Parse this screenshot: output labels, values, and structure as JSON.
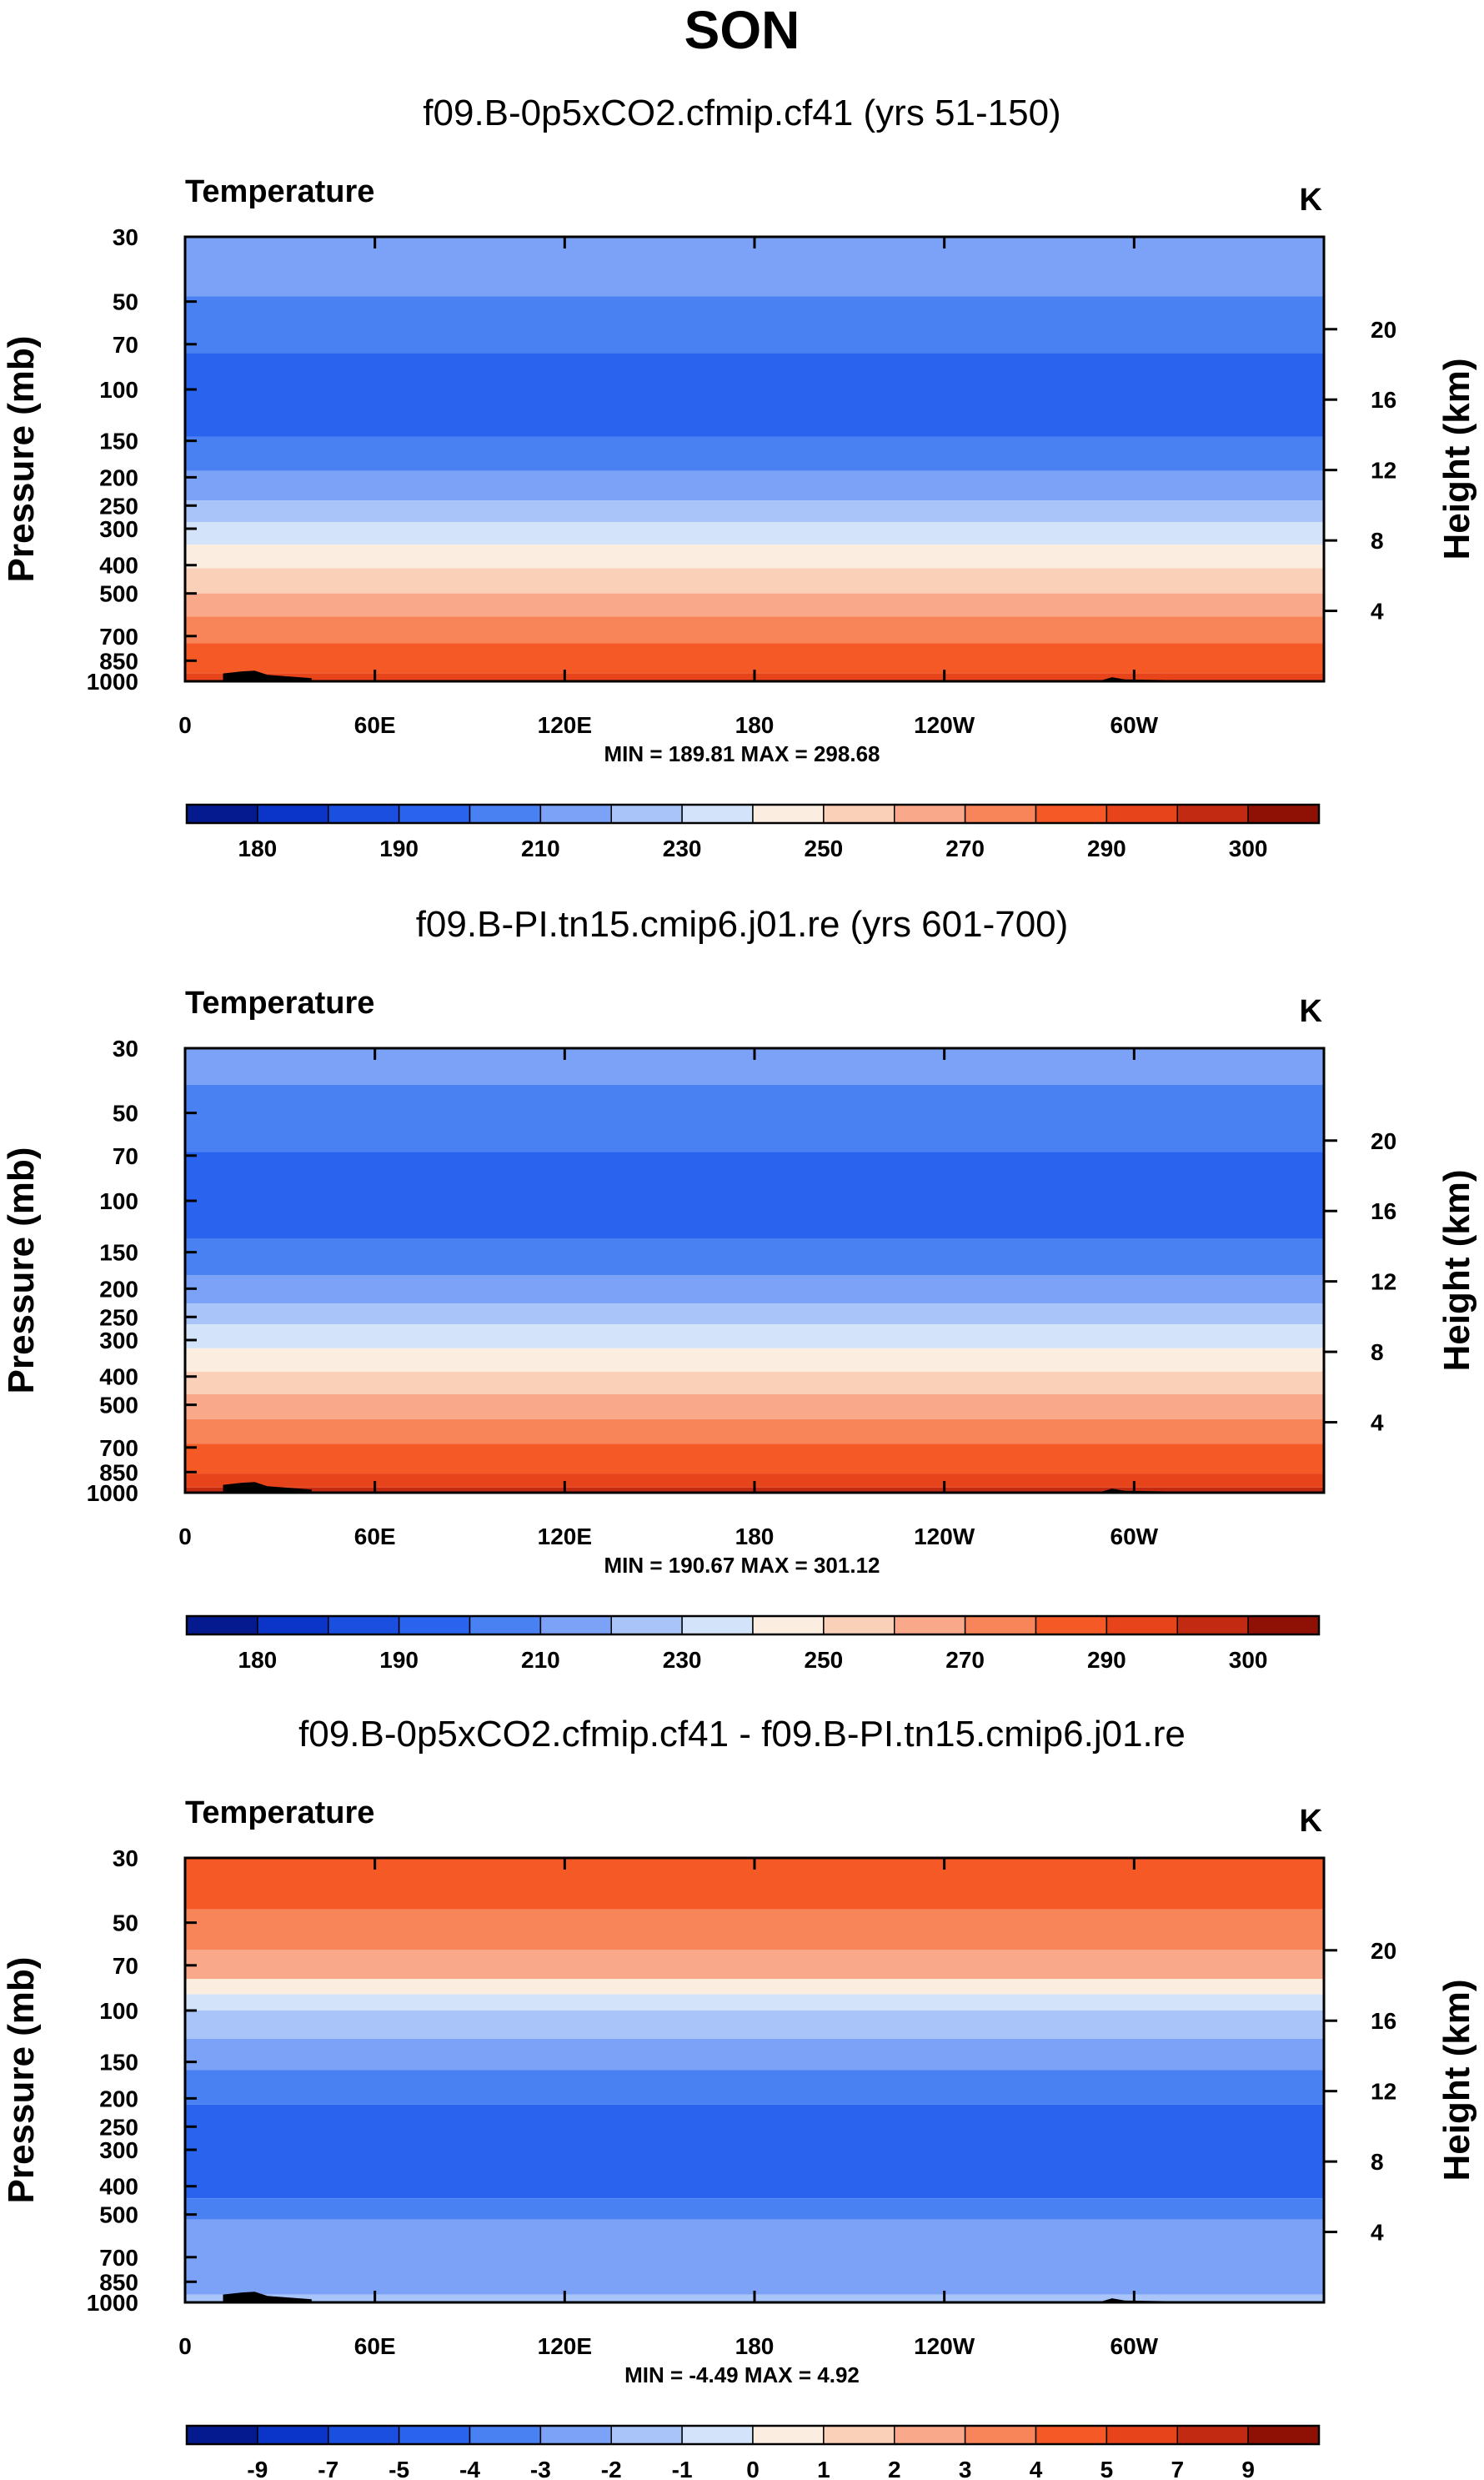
{
  "figure": {
    "title": "SON"
  },
  "chart_data": [
    {
      "type": "heatmap",
      "title": "f09.B-0p5xCO2.cfmip.cf41 (yrs 51-150)",
      "variable_label": "Temperature",
      "units_label": "K",
      "xlabel": "",
      "ylabel": "Pressure (mb)",
      "ylabel_right": "Height (km)",
      "x_ticks": [
        "0",
        "60E",
        "120E",
        "180",
        "120W",
        "60W"
      ],
      "y_ticks": [
        "30",
        "50",
        "70",
        "100",
        "150",
        "200",
        "250",
        "300",
        "400",
        "500",
        "700",
        "850",
        "1000"
      ],
      "y_ticks_right": [
        "20",
        "16",
        "12",
        "8",
        "4"
      ],
      "stats_label": "MIN = 189.81   MAX = 298.68",
      "colorbar_labels": [
        "180",
        "190",
        "210",
        "230",
        "250",
        "270",
        "290",
        "300"
      ],
      "colorbar_colors": [
        "#051a8f",
        "#0a35c8",
        "#1a4fe0",
        "#2a63ee",
        "#4a81f2",
        "#7ba2f6",
        "#a9c4f8",
        "#d3e4fa",
        "#fbeee0",
        "#fad0b8",
        "#f9a98a",
        "#f78559",
        "#f55a26",
        "#e8441b",
        "#c22b12",
        "#8f1005"
      ],
      "bands": [
        {
          "p_top": 30,
          "p_bot": 48,
          "color": "#7ba2f6"
        },
        {
          "p_top": 48,
          "p_bot": 75,
          "color": "#4a81f2"
        },
        {
          "p_top": 75,
          "p_bot": 145,
          "color": "#2a63ee"
        },
        {
          "p_top": 145,
          "p_bot": 190,
          "color": "#4a81f2"
        },
        {
          "p_top": 190,
          "p_bot": 240,
          "color": "#7ba2f6"
        },
        {
          "p_top": 240,
          "p_bot": 285,
          "color": "#a9c4f8"
        },
        {
          "p_top": 285,
          "p_bot": 340,
          "color": "#d3e4fa"
        },
        {
          "p_top": 340,
          "p_bot": 410,
          "color": "#fbeee0"
        },
        {
          "p_top": 410,
          "p_bot": 500,
          "color": "#fad0b8"
        },
        {
          "p_top": 500,
          "p_bot": 600,
          "color": "#f9a98a"
        },
        {
          "p_top": 600,
          "p_bot": 740,
          "color": "#f78559"
        },
        {
          "p_top": 740,
          "p_bot": 940,
          "color": "#f55a26"
        },
        {
          "p_top": 940,
          "p_bot": 1000,
          "color": "#e8441b"
        }
      ]
    },
    {
      "type": "heatmap",
      "title": "f09.B-PI.tn15.cmip6.j01.re (yrs 601-700)",
      "variable_label": "Temperature",
      "units_label": "K",
      "xlabel": "",
      "ylabel": "Pressure (mb)",
      "ylabel_right": "Height (km)",
      "x_ticks": [
        "0",
        "60E",
        "120E",
        "180",
        "120W",
        "60W"
      ],
      "y_ticks": [
        "30",
        "50",
        "70",
        "100",
        "150",
        "200",
        "250",
        "300",
        "400",
        "500",
        "700",
        "850",
        "1000"
      ],
      "y_ticks_right": [
        "20",
        "16",
        "12",
        "8",
        "4"
      ],
      "stats_label": "MIN = 190.67   MAX = 301.12",
      "colorbar_labels": [
        "180",
        "190",
        "210",
        "230",
        "250",
        "270",
        "290",
        "300"
      ],
      "colorbar_colors": [
        "#051a8f",
        "#0a35c8",
        "#1a4fe0",
        "#2a63ee",
        "#4a81f2",
        "#7ba2f6",
        "#a9c4f8",
        "#d3e4fa",
        "#fbeee0",
        "#fad0b8",
        "#f9a98a",
        "#f78559",
        "#f55a26",
        "#e8441b",
        "#c22b12",
        "#8f1005"
      ],
      "bands": [
        {
          "p_top": 30,
          "p_bot": 40,
          "color": "#7ba2f6"
        },
        {
          "p_top": 40,
          "p_bot": 68,
          "color": "#4a81f2"
        },
        {
          "p_top": 68,
          "p_bot": 135,
          "color": "#2a63ee"
        },
        {
          "p_top": 135,
          "p_bot": 180,
          "color": "#4a81f2"
        },
        {
          "p_top": 180,
          "p_bot": 225,
          "color": "#7ba2f6"
        },
        {
          "p_top": 225,
          "p_bot": 265,
          "color": "#a9c4f8"
        },
        {
          "p_top": 265,
          "p_bot": 320,
          "color": "#d3e4fa"
        },
        {
          "p_top": 320,
          "p_bot": 385,
          "color": "#fbeee0"
        },
        {
          "p_top": 385,
          "p_bot": 460,
          "color": "#fad0b8"
        },
        {
          "p_top": 460,
          "p_bot": 560,
          "color": "#f9a98a"
        },
        {
          "p_top": 560,
          "p_bot": 680,
          "color": "#f78559"
        },
        {
          "p_top": 680,
          "p_bot": 860,
          "color": "#f55a26"
        },
        {
          "p_top": 860,
          "p_bot": 960,
          "color": "#e8441b"
        },
        {
          "p_top": 960,
          "p_bot": 1000,
          "color": "#c22b12"
        }
      ]
    },
    {
      "type": "heatmap",
      "title": "f09.B-0p5xCO2.cfmip.cf41 - f09.B-PI.tn15.cmip6.j01.re",
      "variable_label": "Temperature",
      "units_label": "K",
      "xlabel": "",
      "ylabel": "Pressure (mb)",
      "ylabel_right": "Height (km)",
      "x_ticks": [
        "0",
        "60E",
        "120E",
        "180",
        "120W",
        "60W"
      ],
      "y_ticks": [
        "30",
        "50",
        "70",
        "100",
        "150",
        "200",
        "250",
        "300",
        "400",
        "500",
        "700",
        "850",
        "1000"
      ],
      "y_ticks_right": [
        "20",
        "16",
        "12",
        "8",
        "4"
      ],
      "stats_label": "MIN =  -4.49   MAX =   4.92",
      "colorbar_labels": [
        "-9",
        "-7",
        "-5",
        "-4",
        "-3",
        "-2",
        "-1",
        "0",
        "1",
        "2",
        "3",
        "4",
        "5",
        "7",
        "9"
      ],
      "colorbar_colors": [
        "#051a8f",
        "#0a35c8",
        "#1a4fe0",
        "#2a63ee",
        "#4a81f2",
        "#7ba2f6",
        "#a9c4f8",
        "#d3e4fa",
        "#fbeee0",
        "#fad0b8",
        "#f9a98a",
        "#f78559",
        "#f55a26",
        "#e8441b",
        "#c22b12",
        "#8f1005"
      ],
      "bands": [
        {
          "p_top": 30,
          "p_bot": 45,
          "color": "#f55a26"
        },
        {
          "p_top": 45,
          "p_bot": 62,
          "color": "#f78559"
        },
        {
          "p_top": 62,
          "p_bot": 78,
          "color": "#f9a98a"
        },
        {
          "p_top": 78,
          "p_bot": 88,
          "color": "#fbeee0"
        },
        {
          "p_top": 88,
          "p_bot": 100,
          "color": "#d3e4fa"
        },
        {
          "p_top": 100,
          "p_bot": 125,
          "color": "#a9c4f8"
        },
        {
          "p_top": 125,
          "p_bot": 160,
          "color": "#7ba2f6"
        },
        {
          "p_top": 160,
          "p_bot": 210,
          "color": "#4a81f2"
        },
        {
          "p_top": 210,
          "p_bot": 440,
          "color": "#2a63ee"
        },
        {
          "p_top": 440,
          "p_bot": 520,
          "color": "#4a81f2"
        },
        {
          "p_top": 520,
          "p_bot": 940,
          "color": "#7ba2f6"
        },
        {
          "p_top": 940,
          "p_bot": 1000,
          "color": "#a9c4f8"
        }
      ]
    }
  ]
}
